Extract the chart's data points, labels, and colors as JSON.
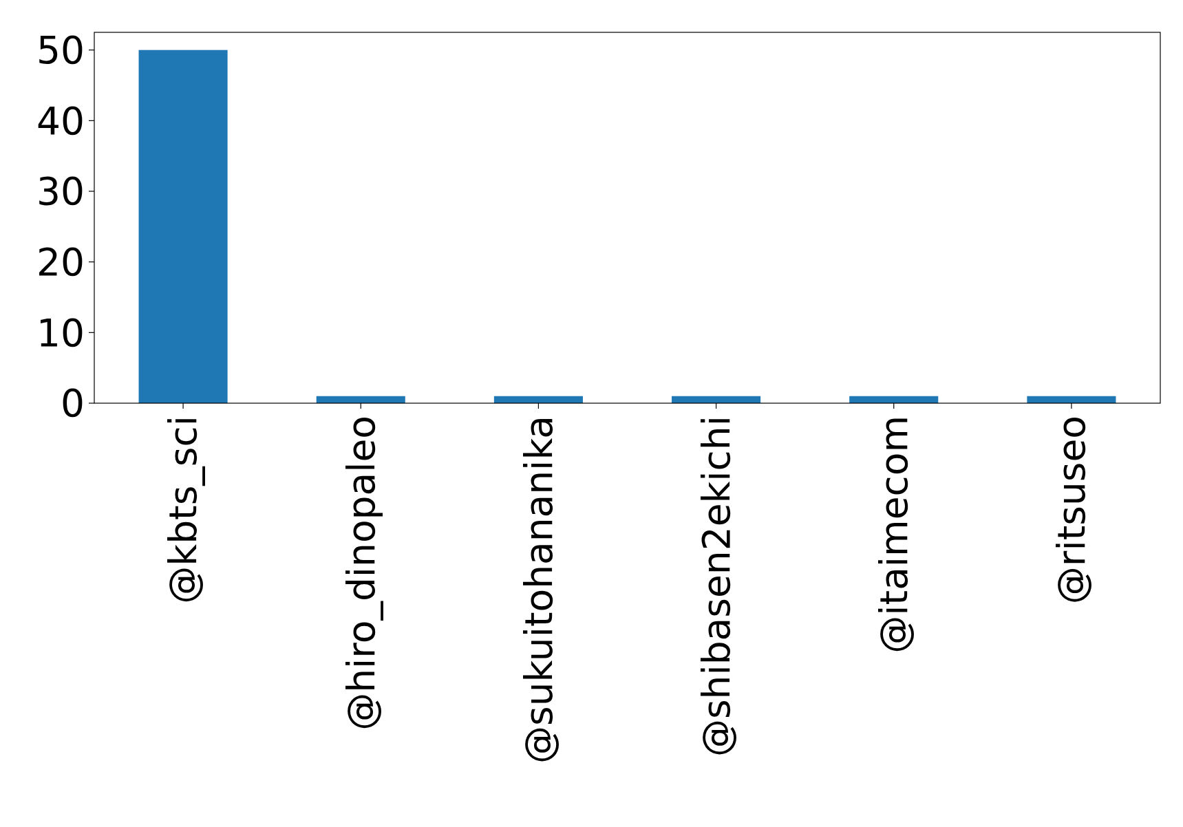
{
  "chart_data": {
    "type": "bar",
    "categories": [
      "@kbts_sci",
      "@hiro_dinopaleo",
      "@sukuitohananika",
      "@shibasen2ekichi",
      "@itaimecom",
      "@ritsuseo"
    ],
    "values": [
      50,
      1,
      1,
      1,
      1,
      1
    ],
    "color": "#1f77b4",
    "ylim": [
      0,
      52.5
    ],
    "yticks": [
      0,
      10,
      20,
      30,
      40,
      50
    ]
  }
}
